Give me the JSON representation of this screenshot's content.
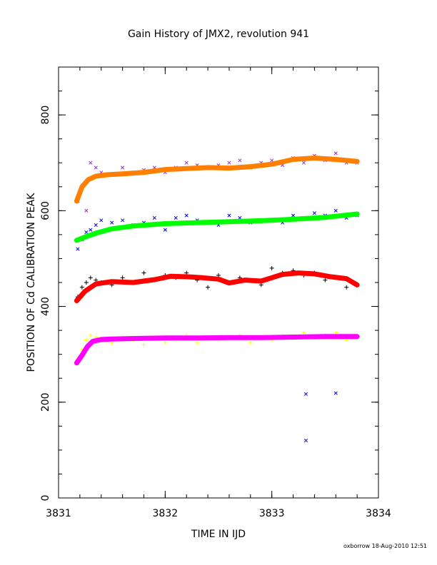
{
  "chart_data": {
    "type": "scatter",
    "title": "Gain History of JMX2, revolution 941",
    "xlabel": "TIME IN IJD",
    "ylabel": "POSITION OF Cd CALIBRATION PEAK",
    "footer": "oxborrow 18-Aug-2010 12:51",
    "xlim": [
      3831,
      3834
    ],
    "ylim": [
      0,
      900
    ],
    "x_ticks": [
      3831,
      3832,
      3833,
      3834
    ],
    "y_ticks": [
      0,
      200,
      400,
      600,
      800
    ],
    "grid": false,
    "legend": "none",
    "series": [
      {
        "marker": "x",
        "color": "#9b30d0",
        "kind": "scatter",
        "x": [
          3831.18,
          3831.22,
          3831.26,
          3831.3,
          3831.35,
          3831.4,
          3831.5,
          3831.6,
          3831.7,
          3831.8,
          3831.9,
          3832.0,
          3832.1,
          3832.2,
          3832.3,
          3832.4,
          3832.5,
          3832.6,
          3832.7,
          3832.8,
          3832.9,
          3833.0,
          3833.1,
          3833.2,
          3833.3,
          3833.4,
          3833.5,
          3833.6,
          3833.7,
          3833.8
        ],
        "y": [
          620,
          650,
          600,
          700,
          690,
          680,
          675,
          690,
          680,
          685,
          690,
          680,
          690,
          700,
          695,
          690,
          695,
          700,
          705,
          690,
          700,
          705,
          695,
          710,
          700,
          715,
          705,
          720,
          700,
          700
        ]
      },
      {
        "marker": "line",
        "color": "#ff8000",
        "kind": "fit",
        "x": [
          3831.17,
          3831.22,
          3831.28,
          3831.35,
          3831.45,
          3831.6,
          3831.8,
          3832.0,
          3832.2,
          3832.4,
          3832.6,
          3832.8,
          3833.0,
          3833.2,
          3833.4,
          3833.6,
          3833.8
        ],
        "y": [
          620,
          650,
          665,
          672,
          675,
          677,
          680,
          686,
          688,
          690,
          689,
          692,
          697,
          707,
          710,
          707,
          703
        ]
      },
      {
        "marker": "x",
        "color": "#0000ff",
        "kind": "scatter",
        "x": [
          3831.18,
          3831.22,
          3831.26,
          3831.3,
          3831.35,
          3831.4,
          3831.5,
          3831.6,
          3831.7,
          3831.8,
          3831.9,
          3832.0,
          3832.1,
          3832.2,
          3832.3,
          3832.4,
          3832.5,
          3832.6,
          3832.7,
          3832.8,
          3832.9,
          3833.0,
          3833.1,
          3833.2,
          3833.3,
          3833.4,
          3833.5,
          3833.6,
          3833.7,
          3833.8
        ],
        "y": [
          520,
          540,
          555,
          560,
          570,
          580,
          575,
          580,
          570,
          575,
          585,
          560,
          585,
          590,
          580,
          575,
          570,
          590,
          585,
          575,
          580,
          580,
          575,
          590,
          585,
          595,
          590,
          600,
          585,
          590
        ]
      },
      {
        "marker": "line",
        "color": "#00ff00",
        "kind": "fit",
        "x": [
          3831.17,
          3831.25,
          3831.35,
          3831.5,
          3831.7,
          3832.0,
          3832.3,
          3832.6,
          3832.9,
          3833.2,
          3833.5,
          3833.8
        ],
        "y": [
          538,
          545,
          553,
          562,
          568,
          573,
          575,
          577,
          579,
          582,
          586,
          593
        ]
      },
      {
        "marker": "x",
        "color": "#0000ff",
        "kind": "outlier",
        "x": [
          3833.32,
          3833.6,
          3833.32
        ],
        "y": [
          217,
          219,
          120
        ]
      },
      {
        "marker": "+",
        "color": "#000000",
        "kind": "scatter",
        "x": [
          3831.18,
          3831.22,
          3831.26,
          3831.3,
          3831.35,
          3831.4,
          3831.5,
          3831.6,
          3831.7,
          3831.8,
          3831.9,
          3832.0,
          3832.1,
          3832.2,
          3832.3,
          3832.4,
          3832.5,
          3832.6,
          3832.7,
          3832.8,
          3832.9,
          3833.0,
          3833.1,
          3833.2,
          3833.3,
          3833.4,
          3833.5,
          3833.6,
          3833.7,
          3833.8
        ],
        "y": [
          420,
          440,
          450,
          460,
          455,
          450,
          445,
          460,
          450,
          470,
          455,
          465,
          460,
          470,
          455,
          440,
          465,
          450,
          460,
          455,
          445,
          480,
          470,
          475,
          465,
          470,
          455,
          460,
          440,
          445
        ]
      },
      {
        "marker": "line",
        "color": "#ff0000",
        "kind": "fit",
        "x": [
          3831.17,
          3831.25,
          3831.35,
          3831.5,
          3831.7,
          3831.9,
          3832.05,
          3832.2,
          3832.35,
          3832.5,
          3832.6,
          3832.75,
          3832.9,
          3833.0,
          3833.1,
          3833.25,
          3833.4,
          3833.55,
          3833.7,
          3833.8
        ],
        "y": [
          412,
          432,
          447,
          452,
          450,
          456,
          463,
          462,
          460,
          457,
          449,
          455,
          453,
          460,
          467,
          470,
          468,
          462,
          458,
          445
        ]
      },
      {
        "marker": "+",
        "color": "#ffff00",
        "kind": "scatter",
        "x": [
          3831.18,
          3831.22,
          3831.26,
          3831.3,
          3831.35,
          3831.4,
          3831.5,
          3831.6,
          3831.7,
          3831.8,
          3831.9,
          3832.0,
          3832.1,
          3832.2,
          3832.3,
          3832.4,
          3832.5,
          3832.6,
          3832.7,
          3832.8,
          3832.9,
          3833.0,
          3833.1,
          3833.2,
          3833.3,
          3833.4,
          3833.5,
          3833.6,
          3833.7,
          3833.8
        ],
        "y": [
          290,
          310,
          330,
          340,
          335,
          330,
          325,
          335,
          330,
          320,
          335,
          325,
          330,
          340,
          325,
          335,
          330,
          335,
          340,
          325,
          335,
          330,
          340,
          335,
          345,
          335,
          340,
          345,
          330,
          340
        ]
      },
      {
        "marker": "line",
        "color": "#ff00ff",
        "kind": "fit",
        "x": [
          3831.17,
          3831.22,
          3831.27,
          3831.32,
          3831.4,
          3831.5,
          3831.7,
          3832.0,
          3832.3,
          3832.6,
          3832.9,
          3833.2,
          3833.5,
          3833.8
        ],
        "y": [
          282,
          298,
          316,
          327,
          331,
          332,
          333,
          334,
          334,
          335,
          335,
          336,
          337,
          337
        ]
      }
    ]
  }
}
